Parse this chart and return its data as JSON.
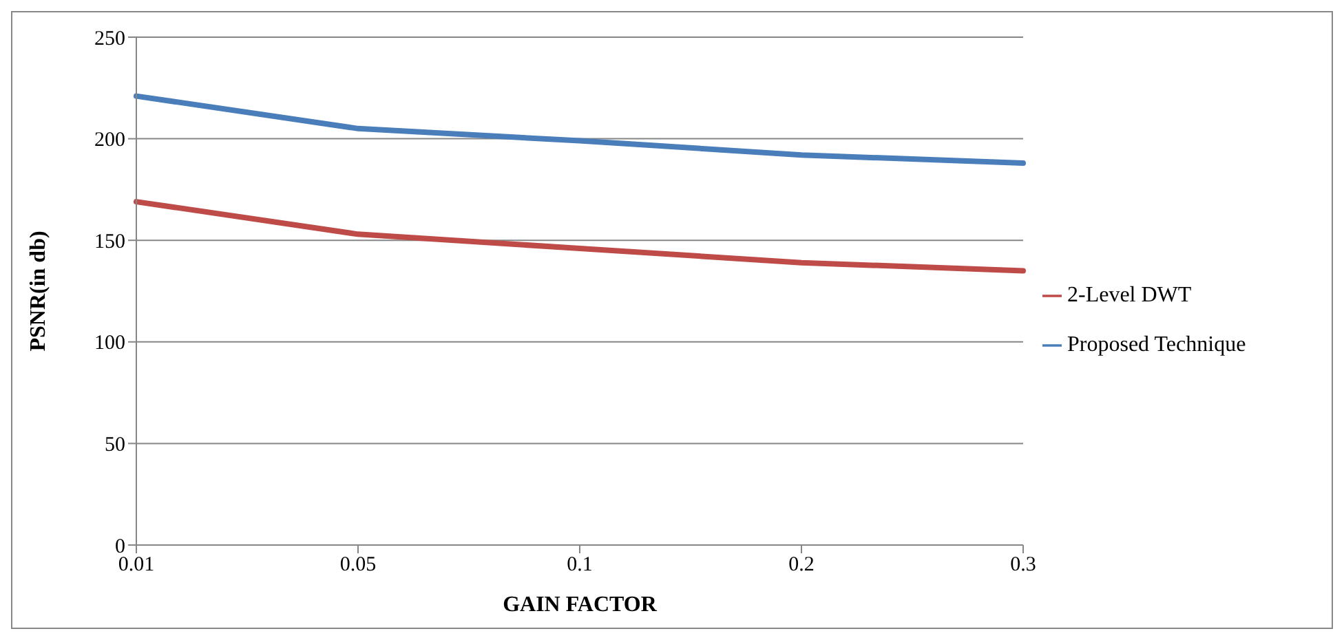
{
  "chart_data": {
    "type": "line",
    "xlabel": "GAIN FACTOR",
    "ylabel": "PSNR(in db)",
    "categories": [
      "0.01",
      "0.05",
      "0.1",
      "0.2",
      "0.3"
    ],
    "series": [
      {
        "name": "Proposed Technique",
        "color": "#4a7ebb",
        "values": [
          221,
          205,
          199,
          192,
          188
        ]
      },
      {
        "name": "2-Level DWT",
        "color": "#be4b48",
        "values": [
          169,
          153,
          146,
          139,
          135
        ]
      }
    ],
    "ylim": [
      0,
      250
    ],
    "yticks": [
      0,
      50,
      100,
      150,
      200,
      250
    ],
    "grid": "y",
    "legend": "right",
    "marker": "none",
    "line_style": "solid"
  }
}
